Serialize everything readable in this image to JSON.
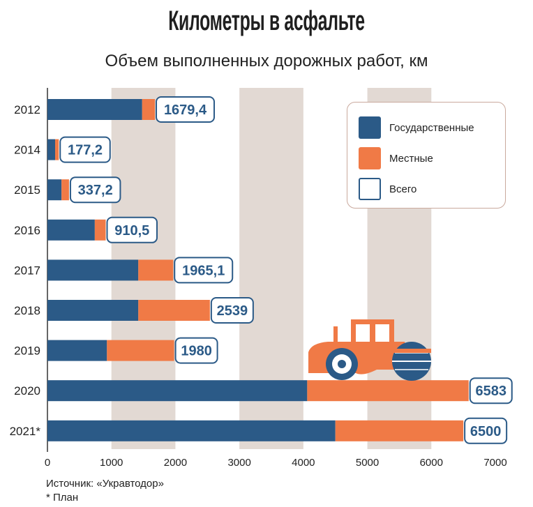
{
  "header": {
    "title": "Километры в асфальте",
    "subtitle": "Объем выполненных дорожных работ, км"
  },
  "legend": {
    "items": [
      {
        "label": "Государственные",
        "color": "#2b5a87",
        "style": "fill"
      },
      {
        "label": "Местные",
        "color": "#f07a46",
        "style": "fill"
      },
      {
        "label": "Всего",
        "color": "#2b5a87",
        "style": "outline"
      }
    ]
  },
  "footer": {
    "source": "Источник: «Укравтодор»",
    "note": "* План"
  },
  "colors": {
    "state": "#2b5a87",
    "local": "#f07a46",
    "band": "#e2d9d3",
    "label_border": "#2b5a87",
    "text": "#1f1f1f"
  },
  "illustration": {
    "icon": "road-roller-icon"
  },
  "chart_data": {
    "type": "bar",
    "orientation": "horizontal",
    "stacked": true,
    "categories": [
      "2012",
      "2014",
      "2015",
      "2016",
      "2017",
      "2018",
      "2019",
      "2020",
      "2021*"
    ],
    "series": [
      {
        "name": "Государственные",
        "values": [
          1480,
          120,
          220,
          740,
          1420,
          1420,
          930,
          4060,
          4500
        ]
      },
      {
        "name": "Местные",
        "values": [
          199.4,
          57.2,
          117.2,
          170.5,
          545.1,
          1119,
          1050,
          2523,
          2000
        ]
      }
    ],
    "totals": [
      "1679,4",
      "177,2",
      "337,2",
      "910,5",
      "1965,1",
      "2539",
      "1980",
      "6583",
      "6500"
    ],
    "total_values": [
      1679.4,
      177.2,
      337.2,
      910.5,
      1965.1,
      2539,
      1980,
      6583,
      6500
    ],
    "xlim": [
      0,
      7000
    ],
    "xticks": [
      "0",
      "1000",
      "2000",
      "3000",
      "4000",
      "5000",
      "6000",
      "7000"
    ],
    "xtick_values": [
      0,
      1000,
      2000,
      3000,
      4000,
      5000,
      6000,
      7000
    ],
    "grid": "alternating vertical bands",
    "legend_position": "top-right"
  }
}
